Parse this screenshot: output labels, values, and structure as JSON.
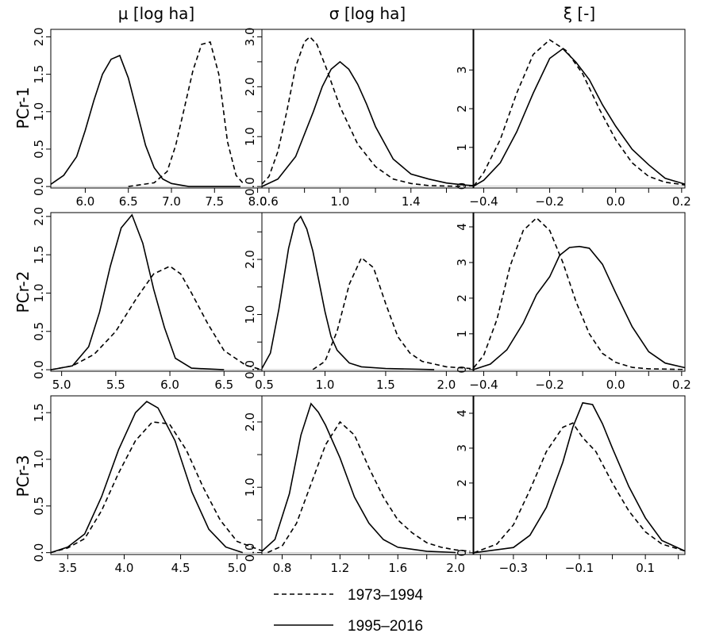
{
  "column_titles": [
    "μ [log ha]",
    "σ [log ha]",
    "ξ [-]"
  ],
  "row_labels": [
    "PCr-1",
    "PCr-2",
    "PCr-3"
  ],
  "legend": {
    "items": [
      {
        "label": "1973–1994",
        "dash": true
      },
      {
        "label": "1995–2016",
        "dash": false
      }
    ]
  },
  "chart_data": [
    {
      "type": "line",
      "row_label": "PCr-1",
      "column_title": "μ [log ha]",
      "xlim": [
        5.6,
        8.05
      ],
      "ylim": [
        -0.02,
        2.1
      ],
      "xticks": [
        6.0,
        6.5,
        7.0,
        7.5,
        8.0
      ],
      "xtick_labels": [
        "6.0",
        "6.5",
        "7.0",
        "7.5",
        "8.0"
      ],
      "yticks": [
        0,
        0.5,
        1.0,
        1.5,
        2.0
      ],
      "ytick_labels": [
        "0.0",
        "0.5",
        "1.0",
        "1.5",
        "2.0"
      ],
      "series": [
        {
          "label": "1973–1994",
          "dash": true,
          "x": [
            6.5,
            6.8,
            6.95,
            7.05,
            7.15,
            7.25,
            7.35,
            7.45,
            7.55,
            7.65,
            7.75,
            7.85
          ],
          "y": [
            0.0,
            0.05,
            0.2,
            0.55,
            1.05,
            1.55,
            1.9,
            1.93,
            1.5,
            0.6,
            0.15,
            0.02
          ]
        },
        {
          "label": "1995–2016",
          "dash": false,
          "x": [
            5.6,
            5.75,
            5.9,
            6.0,
            6.1,
            6.2,
            6.3,
            6.4,
            6.5,
            6.6,
            6.7,
            6.8,
            6.9,
            7.0,
            7.2,
            7.6,
            7.8
          ],
          "y": [
            0.03,
            0.15,
            0.4,
            0.75,
            1.15,
            1.5,
            1.7,
            1.75,
            1.45,
            1.0,
            0.55,
            0.25,
            0.1,
            0.04,
            0.0,
            0.0,
            0.0
          ]
        }
      ]
    },
    {
      "type": "line",
      "row_label": "PCr-1",
      "column_title": "σ [log ha]",
      "xlim": [
        0.56,
        1.75
      ],
      "ylim": [
        -0.03,
        3.15
      ],
      "xticks": [
        0.6,
        1.0,
        1.4
      ],
      "xtick_labels": [
        "0.6",
        "1.0",
        "1.4"
      ],
      "minor_xticks": [
        0.8,
        1.2,
        1.6
      ],
      "yticks": [
        0,
        1.0,
        2.0,
        3.0
      ],
      "ytick_labels": [
        "0.0",
        "1.0",
        "2.0",
        "3.0"
      ],
      "minor_yticks": [
        0.5,
        1.5,
        2.5
      ],
      "series": [
        {
          "label": "1973–1994",
          "dash": true,
          "x": [
            0.56,
            0.6,
            0.65,
            0.7,
            0.75,
            0.8,
            0.83,
            0.87,
            0.92,
            1.0,
            1.1,
            1.2,
            1.3,
            1.4,
            1.5,
            1.6,
            1.7
          ],
          "y": [
            0.05,
            0.2,
            0.7,
            1.5,
            2.4,
            2.9,
            3.0,
            2.85,
            2.4,
            1.6,
            0.85,
            0.4,
            0.15,
            0.06,
            0.02,
            0.01,
            0.0
          ]
        },
        {
          "label": "1995–2016",
          "dash": false,
          "x": [
            0.56,
            0.65,
            0.75,
            0.85,
            0.9,
            0.95,
            1.0,
            1.05,
            1.1,
            1.15,
            1.2,
            1.3,
            1.4,
            1.5,
            1.6,
            1.7,
            1.75
          ],
          "y": [
            0.0,
            0.15,
            0.6,
            1.5,
            2.0,
            2.35,
            2.5,
            2.35,
            2.05,
            1.65,
            1.2,
            0.55,
            0.25,
            0.15,
            0.07,
            0.03,
            0.02
          ]
        }
      ]
    },
    {
      "type": "line",
      "row_label": "PCr-1",
      "column_title": "ξ [-]",
      "xlim": [
        -0.43,
        0.21
      ],
      "ylim": [
        -0.05,
        4.05
      ],
      "xticks": [
        -0.4,
        -0.2,
        0.0,
        0.2
      ],
      "xtick_labels": [
        "−0.4",
        "−0.2",
        "0.0",
        "0.2"
      ],
      "minor_xticks": [
        -0.3,
        -0.1,
        0.1
      ],
      "yticks": [
        0,
        1,
        2,
        3
      ],
      "ytick_labels": [
        "0",
        "1",
        "2",
        "3"
      ],
      "series": [
        {
          "label": "1973–1994",
          "dash": true,
          "x": [
            -0.43,
            -0.4,
            -0.35,
            -0.3,
            -0.25,
            -0.2,
            -0.15,
            -0.1,
            -0.05,
            0.0,
            0.05,
            0.1,
            0.15,
            0.21
          ],
          "y": [
            0.0,
            0.35,
            1.2,
            2.4,
            3.4,
            3.78,
            3.5,
            2.9,
            2.0,
            1.2,
            0.6,
            0.25,
            0.1,
            0.03
          ]
        },
        {
          "label": "1995–2016",
          "dash": false,
          "x": [
            -0.43,
            -0.4,
            -0.35,
            -0.3,
            -0.25,
            -0.2,
            -0.16,
            -0.12,
            -0.08,
            -0.04,
            0.0,
            0.05,
            0.1,
            0.15,
            0.21
          ],
          "y": [
            0.0,
            0.15,
            0.6,
            1.4,
            2.4,
            3.3,
            3.55,
            3.2,
            2.75,
            2.1,
            1.55,
            0.95,
            0.55,
            0.2,
            0.05
          ]
        }
      ]
    },
    {
      "type": "line",
      "row_label": "PCr-2",
      "column_title": "μ [log ha]",
      "xlim": [
        4.9,
        6.85
      ],
      "ylim": [
        -0.02,
        2.05
      ],
      "xticks": [
        5.0,
        5.5,
        6.0,
        6.5
      ],
      "xtick_labels": [
        "5.0",
        "5.5",
        "6.0",
        "6.5"
      ],
      "yticks": [
        0,
        0.5,
        1.0,
        1.5,
        2.0
      ],
      "ytick_labels": [
        "0.0",
        "0.5",
        "1.0",
        "1.5",
        "2.0"
      ],
      "series": [
        {
          "label": "1973–1994",
          "dash": true,
          "x": [
            4.9,
            5.1,
            5.3,
            5.5,
            5.7,
            5.85,
            6.0,
            6.1,
            6.2,
            6.35,
            6.5,
            6.7,
            6.85
          ],
          "y": [
            0.0,
            0.05,
            0.2,
            0.5,
            0.95,
            1.25,
            1.35,
            1.25,
            1.0,
            0.6,
            0.25,
            0.06,
            0.0
          ]
        },
        {
          "label": "1995–2016",
          "dash": false,
          "x": [
            4.9,
            5.1,
            5.25,
            5.35,
            5.45,
            5.55,
            5.65,
            5.75,
            5.85,
            5.95,
            6.05,
            6.2,
            6.5
          ],
          "y": [
            0.0,
            0.05,
            0.3,
            0.75,
            1.35,
            1.85,
            2.02,
            1.65,
            1.05,
            0.55,
            0.15,
            0.02,
            0.0
          ]
        }
      ]
    },
    {
      "type": "line",
      "row_label": "PCr-2",
      "column_title": "σ [log ha]",
      "xlim": [
        0.48,
        2.22
      ],
      "ylim": [
        -0.03,
        2.85
      ],
      "xticks": [
        0.5,
        1.0,
        1.5,
        2.0
      ],
      "xtick_labels": [
        "0.5",
        "1.0",
        "1.5",
        "2.0"
      ],
      "yticks": [
        0,
        1.0,
        2.0
      ],
      "ytick_labels": [
        "0.0",
        "1.0",
        "2.0"
      ],
      "minor_yticks": [
        0.5,
        1.5,
        2.5
      ],
      "series": [
        {
          "label": "1973–1994",
          "dash": true,
          "x": [
            0.9,
            1.0,
            1.1,
            1.2,
            1.3,
            1.4,
            1.5,
            1.6,
            1.7,
            1.8,
            2.0,
            2.2
          ],
          "y": [
            0.0,
            0.15,
            0.7,
            1.55,
            2.03,
            1.85,
            1.2,
            0.6,
            0.3,
            0.15,
            0.05,
            0.02
          ]
        },
        {
          "label": "1995–2016",
          "dash": false,
          "x": [
            0.48,
            0.55,
            0.62,
            0.7,
            0.75,
            0.8,
            0.85,
            0.9,
            0.95,
            1.0,
            1.05,
            1.1,
            1.2,
            1.3,
            1.5,
            1.9
          ],
          "y": [
            0.02,
            0.3,
            1.1,
            2.2,
            2.65,
            2.78,
            2.55,
            2.15,
            1.6,
            1.05,
            0.6,
            0.35,
            0.12,
            0.05,
            0.02,
            0.0
          ]
        }
      ]
    },
    {
      "type": "line",
      "row_label": "PCr-2",
      "column_title": "ξ [-]",
      "xlim": [
        -0.43,
        0.21
      ],
      "ylim": [
        -0.05,
        4.4
      ],
      "xticks": [
        -0.4,
        -0.2,
        0.0,
        0.2
      ],
      "xtick_labels": [
        "−0.4",
        "−0.2",
        "0.0",
        "0.2"
      ],
      "minor_xticks": [
        -0.3,
        -0.1,
        0.1
      ],
      "yticks": [
        0,
        1,
        2,
        3,
        4
      ],
      "ytick_labels": [
        "0",
        "1",
        "2",
        "3",
        "4"
      ],
      "series": [
        {
          "label": "1973–1994",
          "dash": true,
          "x": [
            -0.43,
            -0.4,
            -0.36,
            -0.32,
            -0.28,
            -0.24,
            -0.2,
            -0.16,
            -0.12,
            -0.08,
            -0.04,
            0.0,
            0.05,
            0.1,
            0.21
          ],
          "y": [
            0.05,
            0.4,
            1.4,
            2.9,
            3.9,
            4.25,
            3.9,
            3.0,
            1.9,
            1.0,
            0.45,
            0.2,
            0.06,
            0.02,
            0.0
          ]
        },
        {
          "label": "1995–2016",
          "dash": false,
          "x": [
            -0.43,
            -0.38,
            -0.33,
            -0.28,
            -0.24,
            -0.2,
            -0.17,
            -0.14,
            -0.11,
            -0.08,
            -0.04,
            0.0,
            0.05,
            0.1,
            0.15,
            0.21
          ],
          "y": [
            0.0,
            0.15,
            0.55,
            1.3,
            2.1,
            2.6,
            3.2,
            3.42,
            3.45,
            3.4,
            2.95,
            2.15,
            1.2,
            0.5,
            0.18,
            0.05
          ]
        }
      ]
    },
    {
      "type": "line",
      "row_label": "PCr-3",
      "column_title": "μ [log ha]",
      "xlim": [
        3.35,
        5.22
      ],
      "ylim": [
        -0.02,
        1.68
      ],
      "xticks": [
        3.5,
        4.0,
        4.5,
        5.0
      ],
      "xtick_labels": [
        "3.5",
        "4.0",
        "4.5",
        "5.0"
      ],
      "yticks": [
        0,
        0.5,
        1.0,
        1.5
      ],
      "ytick_labels": [
        "0.0",
        "0.5",
        "1.0",
        "1.5"
      ],
      "series": [
        {
          "label": "1973–1994",
          "dash": true,
          "x": [
            3.35,
            3.5,
            3.65,
            3.8,
            3.95,
            4.1,
            4.25,
            4.4,
            4.55,
            4.7,
            4.85,
            5.0,
            5.22
          ],
          "y": [
            0.0,
            0.05,
            0.15,
            0.45,
            0.85,
            1.2,
            1.4,
            1.38,
            1.1,
            0.7,
            0.35,
            0.12,
            0.02
          ]
        },
        {
          "label": "1995–2016",
          "dash": false,
          "x": [
            3.35,
            3.5,
            3.65,
            3.8,
            3.95,
            4.1,
            4.2,
            4.3,
            4.45,
            4.6,
            4.75,
            4.9,
            5.05
          ],
          "y": [
            0.0,
            0.06,
            0.2,
            0.6,
            1.1,
            1.5,
            1.62,
            1.55,
            1.2,
            0.65,
            0.25,
            0.06,
            0.0
          ]
        }
      ]
    },
    {
      "type": "line",
      "row_label": "PCr-3",
      "column_title": "σ [log ha]",
      "xlim": [
        0.66,
        2.12
      ],
      "ylim": [
        -0.03,
        2.4
      ],
      "xticks": [
        0.8,
        1.2,
        1.6,
        2.0
      ],
      "xtick_labels": [
        "0.8",
        "1.2",
        "1.6",
        "2.0"
      ],
      "minor_xticks": [
        1.0,
        1.4,
        1.8
      ],
      "yticks": [
        0,
        1.0,
        2.0
      ],
      "ytick_labels": [
        "0.0",
        "1.0",
        "2.0"
      ],
      "minor_yticks": [
        0.5,
        1.5
      ],
      "series": [
        {
          "label": "1973–1994",
          "dash": true,
          "x": [
            0.7,
            0.8,
            0.9,
            1.0,
            1.1,
            1.2,
            1.3,
            1.4,
            1.5,
            1.6,
            1.7,
            1.8,
            1.9,
            2.0,
            2.1
          ],
          "y": [
            0.0,
            0.1,
            0.45,
            1.05,
            1.65,
            2.0,
            1.8,
            1.3,
            0.85,
            0.5,
            0.3,
            0.15,
            0.08,
            0.04,
            0.02
          ]
        },
        {
          "label": "1995–2016",
          "dash": false,
          "x": [
            0.66,
            0.75,
            0.85,
            0.93,
            1.0,
            1.05,
            1.1,
            1.2,
            1.3,
            1.4,
            1.5,
            1.6,
            1.8,
            2.0
          ],
          "y": [
            0.02,
            0.2,
            0.9,
            1.8,
            2.28,
            2.15,
            1.95,
            1.45,
            0.85,
            0.45,
            0.2,
            0.08,
            0.02,
            0.0
          ]
        }
      ]
    },
    {
      "type": "line",
      "row_label": "PCr-3",
      "column_title": "ξ [-]",
      "xlim": [
        -0.42,
        0.22
      ],
      "ylim": [
        -0.05,
        4.5
      ],
      "xticks": [
        -0.3,
        -0.1,
        0.1
      ],
      "xtick_labels": [
        "−0.3",
        "−0.1",
        "0.1"
      ],
      "minor_xticks": [
        -0.4,
        -0.2,
        0.0,
        0.2
      ],
      "yticks": [
        0,
        1,
        2,
        3,
        4
      ],
      "ytick_labels": [
        "0",
        "1",
        "2",
        "3",
        "4"
      ],
      "series": [
        {
          "label": "1973–1994",
          "dash": true,
          "x": [
            -0.42,
            -0.35,
            -0.3,
            -0.25,
            -0.2,
            -0.15,
            -0.12,
            -0.09,
            -0.05,
            0.0,
            0.05,
            0.1,
            0.15,
            0.22
          ],
          "y": [
            0.0,
            0.25,
            0.8,
            1.8,
            2.9,
            3.6,
            3.72,
            3.3,
            2.9,
            2.0,
            1.2,
            0.6,
            0.25,
            0.05
          ]
        },
        {
          "label": "1995–2016",
          "dash": false,
          "x": [
            -0.42,
            -0.3,
            -0.25,
            -0.2,
            -0.15,
            -0.12,
            -0.09,
            -0.06,
            -0.03,
            0.0,
            0.05,
            0.1,
            0.15,
            0.22
          ],
          "y": [
            0.0,
            0.15,
            0.5,
            1.3,
            2.6,
            3.6,
            4.3,
            4.25,
            3.7,
            3.0,
            1.9,
            1.0,
            0.35,
            0.05
          ]
        }
      ]
    }
  ]
}
